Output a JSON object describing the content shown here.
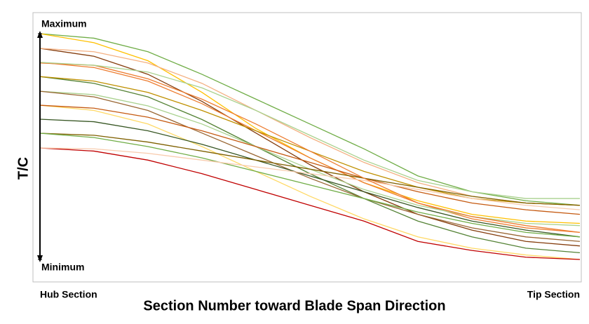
{
  "chart_data": {
    "type": "line",
    "title_y": "T/C",
    "title_x": "Section Number toward Blade Span Direction",
    "categories": [
      "Hub Section",
      null,
      null,
      null,
      null,
      null,
      null,
      null,
      null,
      null,
      "Tip Section"
    ],
    "ylim": [
      0,
      1
    ],
    "yticks": [
      {
        "value": 1,
        "label": "Maximum"
      },
      {
        "value": 0,
        "label": "Minimum"
      }
    ],
    "series": [
      {
        "color": "#70ad47",
        "values": [
          1.0,
          0.98,
          0.92,
          0.82,
          0.71,
          0.6,
          0.49,
          0.37,
          0.3,
          0.26,
          0.24
        ]
      },
      {
        "color": "#ffc000",
        "values": [
          1.0,
          0.96,
          0.88,
          0.74,
          0.58,
          0.45,
          0.34,
          0.26,
          0.2,
          0.17,
          0.16
        ]
      },
      {
        "color": "#843c0c",
        "values": [
          0.935,
          0.9,
          0.82,
          0.7,
          0.56,
          0.42,
          0.3,
          0.2,
          0.13,
          0.08,
          0.06
        ]
      },
      {
        "color": "#f4b183",
        "values": [
          0.935,
          0.92,
          0.87,
          0.78,
          0.66,
          0.54,
          0.43,
          0.34,
          0.28,
          0.25,
          0.24
        ]
      },
      {
        "color": "#ed7d31",
        "values": [
          0.873,
          0.85,
          0.79,
          0.69,
          0.57,
          0.45,
          0.34,
          0.25,
          0.18,
          0.14,
          0.12
        ]
      },
      {
        "color": "#548235",
        "values": [
          0.81,
          0.78,
          0.72,
          0.62,
          0.5,
          0.38,
          0.27,
          0.17,
          0.1,
          0.05,
          0.03
        ]
      },
      {
        "color": "#bf9000",
        "values": [
          0.81,
          0.79,
          0.74,
          0.66,
          0.57,
          0.48,
          0.39,
          0.32,
          0.27,
          0.25,
          0.24
        ]
      },
      {
        "color": "#a9d18e",
        "values": [
          0.745,
          0.73,
          0.68,
          0.6,
          0.5,
          0.4,
          0.31,
          0.24,
          0.19,
          0.16,
          0.15
        ]
      },
      {
        "color": "#996633",
        "values": [
          0.745,
          0.72,
          0.66,
          0.56,
          0.46,
          0.36,
          0.27,
          0.2,
          0.14,
          0.1,
          0.08
        ]
      },
      {
        "color": "#ffd966",
        "values": [
          0.683,
          0.66,
          0.6,
          0.5,
          0.39,
          0.28,
          0.18,
          0.1,
          0.05,
          0.02,
          0.0
        ]
      },
      {
        "color": "#c55a11",
        "values": [
          0.683,
          0.67,
          0.63,
          0.57,
          0.5,
          0.43,
          0.36,
          0.3,
          0.25,
          0.22,
          0.2
        ]
      },
      {
        "color": "#375623",
        "values": [
          0.621,
          0.61,
          0.57,
          0.51,
          0.44,
          0.37,
          0.3,
          0.23,
          0.17,
          0.13,
          0.1
        ]
      },
      {
        "color": "#c00000",
        "values": [
          0.494,
          0.48,
          0.44,
          0.38,
          0.31,
          0.24,
          0.17,
          0.08,
          0.04,
          0.01,
          0.0
        ]
      },
      {
        "color": "#7f6000",
        "values": [
          0.559,
          0.55,
          0.52,
          0.48,
          0.44,
          0.4,
          0.36,
          0.32,
          0.28,
          0.25,
          0.24
        ]
      },
      {
        "color": "#70ad47",
        "values": [
          0.559,
          0.54,
          0.5,
          0.45,
          0.39,
          0.33,
          0.27,
          0.21,
          0.16,
          0.12,
          0.1
        ]
      },
      {
        "color": "#f8cbad",
        "values": [
          0.494,
          0.49,
          0.47,
          0.44,
          0.41,
          0.38,
          0.35,
          0.31,
          0.27,
          0.24,
          0.22
        ]
      },
      {
        "color": "#ed7d31",
        "values": [
          0.87,
          0.86,
          0.8,
          0.71,
          0.6,
          0.48,
          0.36,
          0.25,
          0.19,
          0.15,
          0.12
        ]
      },
      {
        "color": "#a9d18e",
        "values": [
          0.873,
          0.86,
          0.83,
          0.76,
          0.66,
          0.55,
          0.44,
          0.35,
          0.3,
          0.27,
          0.27
        ]
      }
    ]
  }
}
